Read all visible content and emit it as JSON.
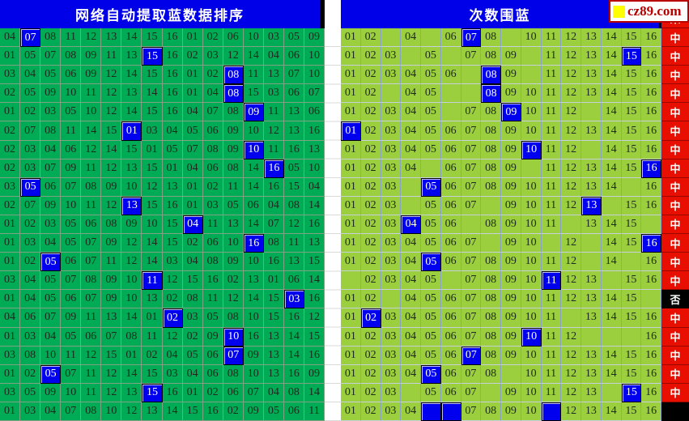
{
  "headers": {
    "left_title": "网络自动提取蓝数据排序",
    "right_title": "次数围蓝",
    "result_header": "果",
    "logo_text": "cz89.com"
  },
  "colors": {
    "left_cell_bg": "#00ab55",
    "right_cell_bg": "#9ccf3d",
    "highlight_blue": "#0000ee",
    "header_blue": "#0000e8",
    "result_red": "#e80f00",
    "result_miss_bg": "#000000",
    "logo_red": "#b80000",
    "logo_yellow": "#ffff00"
  },
  "result_labels": {
    "hit": "中",
    "miss": "否"
  },
  "left_panel": {
    "rows": [
      {
        "values": [
          "04",
          "07",
          "08",
          "11",
          "12",
          "13",
          "14",
          "15",
          "16",
          "01",
          "02",
          "06",
          "10",
          "03",
          "05",
          "09"
        ],
        "blue": 1
      },
      {
        "values": [
          "01",
          "05",
          "07",
          "08",
          "09",
          "11",
          "13",
          "15",
          "16",
          "02",
          "03",
          "12",
          "14",
          "04",
          "06",
          "10"
        ],
        "blue": 7
      },
      {
        "values": [
          "03",
          "04",
          "05",
          "06",
          "09",
          "12",
          "14",
          "15",
          "16",
          "01",
          "02",
          "08",
          "11",
          "13",
          "07",
          "10"
        ],
        "blue": 11
      },
      {
        "values": [
          "02",
          "05",
          "09",
          "10",
          "11",
          "12",
          "13",
          "14",
          "16",
          "01",
          "04",
          "08",
          "15",
          "03",
          "06",
          "07"
        ],
        "blue": 11
      },
      {
        "values": [
          "01",
          "02",
          "03",
          "05",
          "10",
          "12",
          "14",
          "15",
          "16",
          "04",
          "07",
          "08",
          "09",
          "11",
          "13",
          "06"
        ],
        "blue": 12
      },
      {
        "values": [
          "02",
          "07",
          "08",
          "11",
          "14",
          "15",
          "01",
          "03",
          "04",
          "05",
          "06",
          "09",
          "10",
          "12",
          "13",
          "16"
        ],
        "blue": 6
      },
      {
        "values": [
          "02",
          "03",
          "04",
          "06",
          "12",
          "14",
          "15",
          "01",
          "05",
          "07",
          "08",
          "09",
          "10",
          "11",
          "16",
          "13"
        ],
        "blue": 12
      },
      {
        "values": [
          "02",
          "03",
          "07",
          "09",
          "11",
          "12",
          "13",
          "15",
          "01",
          "04",
          "06",
          "08",
          "14",
          "16",
          "05",
          "10"
        ],
        "blue": 13
      },
      {
        "values": [
          "03",
          "05",
          "06",
          "07",
          "08",
          "09",
          "10",
          "12",
          "13",
          "01",
          "02",
          "11",
          "14",
          "16",
          "15",
          "04"
        ],
        "blue": 1
      },
      {
        "values": [
          "02",
          "07",
          "09",
          "10",
          "11",
          "12",
          "13",
          "15",
          "16",
          "01",
          "03",
          "05",
          "06",
          "04",
          "08",
          "14"
        ],
        "blue": 6
      },
      {
        "values": [
          "01",
          "02",
          "03",
          "05",
          "06",
          "08",
          "09",
          "10",
          "15",
          "04",
          "11",
          "13",
          "14",
          "07",
          "12",
          "16"
        ],
        "blue": 9
      },
      {
        "values": [
          "01",
          "03",
          "04",
          "05",
          "07",
          "09",
          "12",
          "14",
          "15",
          "02",
          "06",
          "10",
          "16",
          "08",
          "11",
          "13"
        ],
        "blue": 12
      },
      {
        "values": [
          "01",
          "02",
          "05",
          "06",
          "07",
          "11",
          "12",
          "14",
          "03",
          "04",
          "08",
          "09",
          "10",
          "16",
          "13",
          "15"
        ],
        "blue": 2
      },
      {
        "values": [
          "03",
          "04",
          "05",
          "07",
          "08",
          "09",
          "10",
          "11",
          "12",
          "15",
          "16",
          "02",
          "13",
          "01",
          "06",
          "14"
        ],
        "blue": 7
      },
      {
        "values": [
          "01",
          "04",
          "05",
          "06",
          "07",
          "09",
          "10",
          "13",
          "02",
          "08",
          "11",
          "12",
          "14",
          "15",
          "03",
          "16"
        ],
        "blue": 14
      },
      {
        "values": [
          "04",
          "06",
          "07",
          "09",
          "11",
          "13",
          "14",
          "01",
          "02",
          "03",
          "05",
          "08",
          "10",
          "15",
          "16",
          "12"
        ],
        "blue": 8
      },
      {
        "values": [
          "01",
          "03",
          "04",
          "05",
          "06",
          "07",
          "08",
          "11",
          "12",
          "02",
          "09",
          "10",
          "16",
          "13",
          "14",
          "15"
        ],
        "blue": 11
      },
      {
        "values": [
          "03",
          "08",
          "10",
          "11",
          "12",
          "15",
          "01",
          "02",
          "04",
          "05",
          "06",
          "07",
          "09",
          "13",
          "14",
          "16"
        ],
        "blue": 11
      },
      {
        "values": [
          "01",
          "02",
          "05",
          "07",
          "11",
          "12",
          "14",
          "15",
          "03",
          "04",
          "06",
          "08",
          "10",
          "13",
          "16",
          "09"
        ],
        "blue": 2
      },
      {
        "values": [
          "03",
          "05",
          "09",
          "10",
          "11",
          "12",
          "13",
          "15",
          "16",
          "01",
          "02",
          "06",
          "07",
          "04",
          "08",
          "14"
        ],
        "blue": 7
      },
      {
        "values": [
          "01",
          "03",
          "04",
          "07",
          "08",
          "10",
          "12",
          "13",
          "14",
          "15",
          "16",
          "02",
          "09",
          "05",
          "06",
          "11"
        ],
        "blue": -1
      }
    ]
  },
  "right_panel": {
    "rows": [
      {
        "cells": [
          "01",
          "02",
          "",
          "04",
          "",
          "06",
          "07",
          "08",
          "",
          "10",
          "11",
          "12",
          "13",
          "14",
          "15",
          "16"
        ],
        "blue": [
          6
        ],
        "result": "中"
      },
      {
        "cells": [
          "01",
          "02",
          "03",
          "",
          "05",
          "",
          "07",
          "08",
          "09",
          "",
          "11",
          "12",
          "13",
          "14",
          "15",
          "16"
        ],
        "blue": [
          14
        ],
        "result": "中"
      },
      {
        "cells": [
          "01",
          "02",
          "03",
          "04",
          "05",
          "06",
          "",
          "08",
          "09",
          "",
          "11",
          "12",
          "13",
          "14",
          "15",
          "16"
        ],
        "blue": [
          7
        ],
        "result": "中"
      },
      {
        "cells": [
          "01",
          "02",
          "",
          "04",
          "05",
          "",
          "",
          "08",
          "09",
          "10",
          "11",
          "12",
          "13",
          "14",
          "15",
          "16"
        ],
        "blue": [
          7
        ],
        "result": "中"
      },
      {
        "cells": [
          "01",
          "02",
          "03",
          "04",
          "05",
          "",
          "07",
          "08",
          "09",
          "10",
          "11",
          "12",
          "",
          "14",
          "15",
          "16"
        ],
        "blue": [
          8
        ],
        "result": "中"
      },
      {
        "cells": [
          "01",
          "02",
          "03",
          "04",
          "05",
          "06",
          "07",
          "08",
          "09",
          "10",
          "11",
          "12",
          "13",
          "14",
          "15",
          "16"
        ],
        "blue": [
          0
        ],
        "result": "中"
      },
      {
        "cells": [
          "01",
          "02",
          "03",
          "04",
          "05",
          "06",
          "07",
          "08",
          "09",
          "10",
          "11",
          "12",
          "",
          "14",
          "15",
          "16"
        ],
        "blue": [
          9
        ],
        "result": "中"
      },
      {
        "cells": [
          "01",
          "02",
          "03",
          "04",
          "",
          "06",
          "07",
          "08",
          "09",
          "",
          "11",
          "12",
          "13",
          "14",
          "15",
          "16"
        ],
        "blue": [
          15
        ],
        "result": "中"
      },
      {
        "cells": [
          "01",
          "02",
          "03",
          "",
          "05",
          "06",
          "07",
          "08",
          "09",
          "10",
          "11",
          "12",
          "13",
          "14",
          "",
          "16"
        ],
        "blue": [
          4
        ],
        "result": "中"
      },
      {
        "cells": [
          "01",
          "02",
          "03",
          "",
          "05",
          "06",
          "07",
          "",
          "09",
          "10",
          "11",
          "12",
          "13",
          "",
          "15",
          "16"
        ],
        "blue": [
          12
        ],
        "result": "中"
      },
      {
        "cells": [
          "01",
          "02",
          "03",
          "04",
          "05",
          "06",
          "",
          "08",
          "09",
          "10",
          "11",
          "",
          "13",
          "14",
          "15",
          ""
        ],
        "blue": [
          3
        ],
        "result": "中"
      },
      {
        "cells": [
          "01",
          "02",
          "03",
          "04",
          "05",
          "06",
          "07",
          "",
          "09",
          "10",
          "",
          "12",
          "",
          "14",
          "15",
          "16"
        ],
        "blue": [
          15
        ],
        "result": "中"
      },
      {
        "cells": [
          "01",
          "02",
          "03",
          "04",
          "05",
          "06",
          "07",
          "08",
          "09",
          "10",
          "11",
          "12",
          "",
          "14",
          "",
          "16"
        ],
        "blue": [
          4
        ],
        "result": "中"
      },
      {
        "cells": [
          "",
          "02",
          "03",
          "04",
          "05",
          "",
          "07",
          "08",
          "09",
          "10",
          "11",
          "12",
          "13",
          "",
          "15",
          "16"
        ],
        "blue": [
          10
        ],
        "result": "中"
      },
      {
        "cells": [
          "01",
          "02",
          "",
          "04",
          "05",
          "06",
          "07",
          "08",
          "09",
          "10",
          "11",
          "12",
          "13",
          "14",
          "15",
          ""
        ],
        "blue": [],
        "result": "否"
      },
      {
        "cells": [
          "01",
          "02",
          "03",
          "04",
          "05",
          "06",
          "07",
          "08",
          "09",
          "10",
          "11",
          "",
          "13",
          "14",
          "15",
          "16"
        ],
        "blue": [
          1
        ],
        "result": "中"
      },
      {
        "cells": [
          "01",
          "02",
          "03",
          "04",
          "05",
          "06",
          "07",
          "08",
          "09",
          "10",
          "11",
          "12",
          "",
          "",
          "",
          "16"
        ],
        "blue": [
          9
        ],
        "result": "中"
      },
      {
        "cells": [
          "01",
          "02",
          "03",
          "04",
          "05",
          "06",
          "07",
          "08",
          "09",
          "10",
          "11",
          "12",
          "13",
          "14",
          "15",
          "16"
        ],
        "blue": [
          6
        ],
        "result": "中"
      },
      {
        "cells": [
          "01",
          "02",
          "03",
          "04",
          "05",
          "06",
          "07",
          "08",
          "",
          "10",
          "11",
          "12",
          "13",
          "14",
          "15",
          "16"
        ],
        "blue": [
          4
        ],
        "result": "中"
      },
      {
        "cells": [
          "01",
          "02",
          "03",
          "",
          "05",
          "06",
          "07",
          "",
          "09",
          "10",
          "11",
          "12",
          "13",
          "",
          "15",
          "16"
        ],
        "blue": [
          14
        ],
        "result": "中"
      },
      {
        "cells": [
          "01",
          "02",
          "03",
          "04",
          "",
          "",
          "07",
          "08",
          "09",
          "10",
          "",
          "12",
          "13",
          "14",
          "15",
          "16"
        ],
        "blue": [
          4,
          5,
          10
        ],
        "result": ""
      }
    ]
  }
}
